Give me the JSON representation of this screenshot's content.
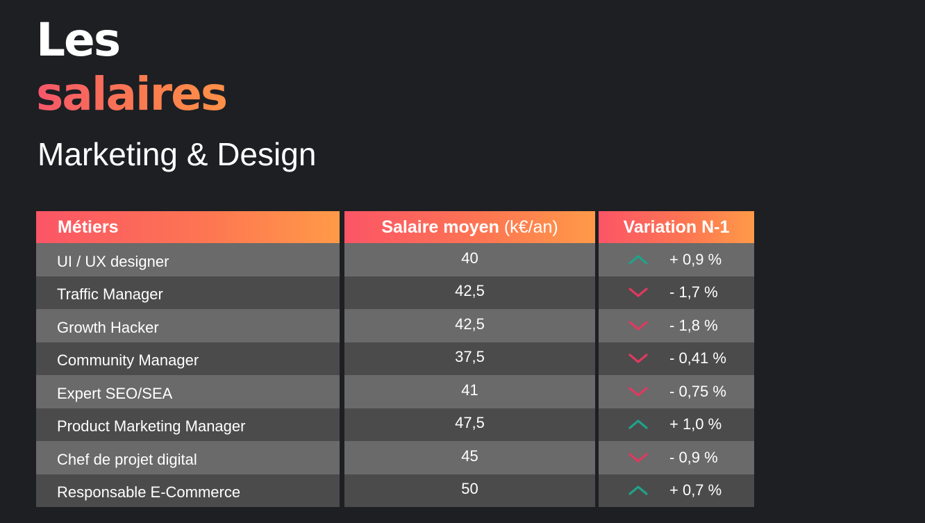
{
  "heading": {
    "line1": "Les",
    "line2": "salaires",
    "subtitle": "Marketing & Design"
  },
  "table": {
    "headers": {
      "jobs": "Métiers",
      "salary": "Salaire moyen",
      "salary_unit": "(k€/an)",
      "variation": "Variation N-1"
    },
    "rows": [
      {
        "job": "UI / UX designer",
        "salary": "40",
        "variation": "+ 0,9 %",
        "trend": "up"
      },
      {
        "job": "Traffic Manager",
        "salary": "42,5",
        "variation": "- 1,7 %",
        "trend": "down"
      },
      {
        "job": "Growth Hacker",
        "salary": "42,5",
        "variation": "- 1,8 %",
        "trend": "down"
      },
      {
        "job": "Community Manager",
        "salary": "37,5",
        "variation": "- 0,41 %",
        "trend": "down"
      },
      {
        "job": "Expert SEO/SEA",
        "salary": "41",
        "variation": "- 0,75 %",
        "trend": "down"
      },
      {
        "job": "Product Marketing Manager",
        "salary": "47,5",
        "variation": "+ 1,0 %",
        "trend": "up"
      },
      {
        "job": "Chef de projet digital",
        "salary": "45",
        "variation": "- 0,9 %",
        "trend": "down"
      },
      {
        "job": "Responsable E-Commerce",
        "salary": "50",
        "variation": "+ 0,7 %",
        "trend": "up"
      }
    ]
  },
  "colors": {
    "background": "#1d1f23",
    "up": "#1fa38a",
    "down": "#e0395f",
    "row_light": "#6a6a6a",
    "row_dark": "#4b4b4b"
  }
}
